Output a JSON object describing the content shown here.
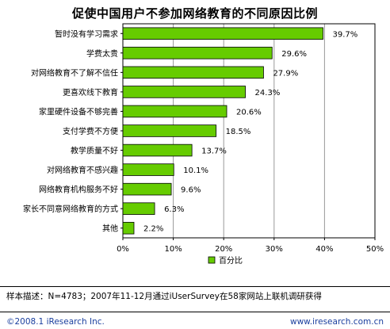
{
  "title": "促使中国用户不参加网络教育的不同原因比例",
  "chart_data": {
    "type": "bar",
    "orientation": "horizontal",
    "categories": [
      "暂时没有学习需求",
      "学费太贵",
      "对网络教育不了解不信任",
      "更喜欢线下教育",
      "家里硬件设备不够完善",
      "支付学费不方便",
      "教学质量不好",
      "对网络教育不感兴趣",
      "网络教育机构服务不好",
      "家长不同意网络教育的方式",
      "其他"
    ],
    "series": [
      {
        "name": "百分比",
        "values": [
          39.7,
          29.6,
          27.9,
          24.3,
          20.6,
          18.5,
          13.7,
          10.1,
          9.6,
          6.3,
          2.2
        ],
        "labels": [
          "39.7%",
          "29.6%",
          "27.9%",
          "24.3%",
          "20.6%",
          "18.5%",
          "13.7%",
          "10.1%",
          "9.6%",
          "6.3%",
          "2.2%"
        ]
      }
    ],
    "xlim": [
      0,
      50
    ],
    "xticks": [
      0,
      10,
      20,
      30,
      40,
      50
    ],
    "xtick_labels": [
      "0%",
      "10%",
      "20%",
      "30%",
      "40%",
      "50%"
    ],
    "grid": true,
    "legend": "bottom",
    "colors": {
      "bar": "#66cc00",
      "bar_border": "#000000"
    }
  },
  "footer": {
    "sample_note": "样本描述：N=4783；2007年11-12月通过iUserSurvey在58家网站上联机调研获得",
    "copyright": "©2008.1 iResearch Inc.",
    "website": "www.iresearch.com.cn"
  }
}
